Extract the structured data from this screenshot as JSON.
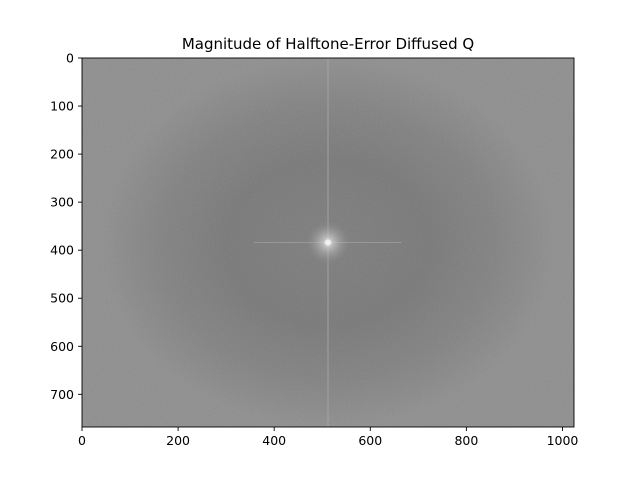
{
  "chart_data": {
    "type": "heatmap",
    "title": "Magnitude of Halftone-Error Diffused Q",
    "xlabel": "",
    "ylabel": "",
    "image_width": 1024,
    "image_height": 768,
    "xlim": [
      0,
      1024
    ],
    "ylim": [
      768,
      0
    ],
    "y_axis_inverted": true,
    "grid": false,
    "colormap": "gray",
    "xticks": [
      0,
      200,
      400,
      600,
      800,
      1000
    ],
    "yticks": [
      0,
      100,
      200,
      300,
      400,
      500,
      600,
      700
    ],
    "xtick_labels": [
      "0",
      "200",
      "400",
      "600",
      "800",
      "1000"
    ],
    "ytick_labels": [
      "0",
      "100",
      "200",
      "300",
      "400",
      "500",
      "600",
      "700"
    ],
    "center": [
      512,
      384
    ],
    "description_colors": {
      "background": "#8c8c8c",
      "center_ring": "#737373",
      "peak": "#f0f0f0"
    }
  }
}
